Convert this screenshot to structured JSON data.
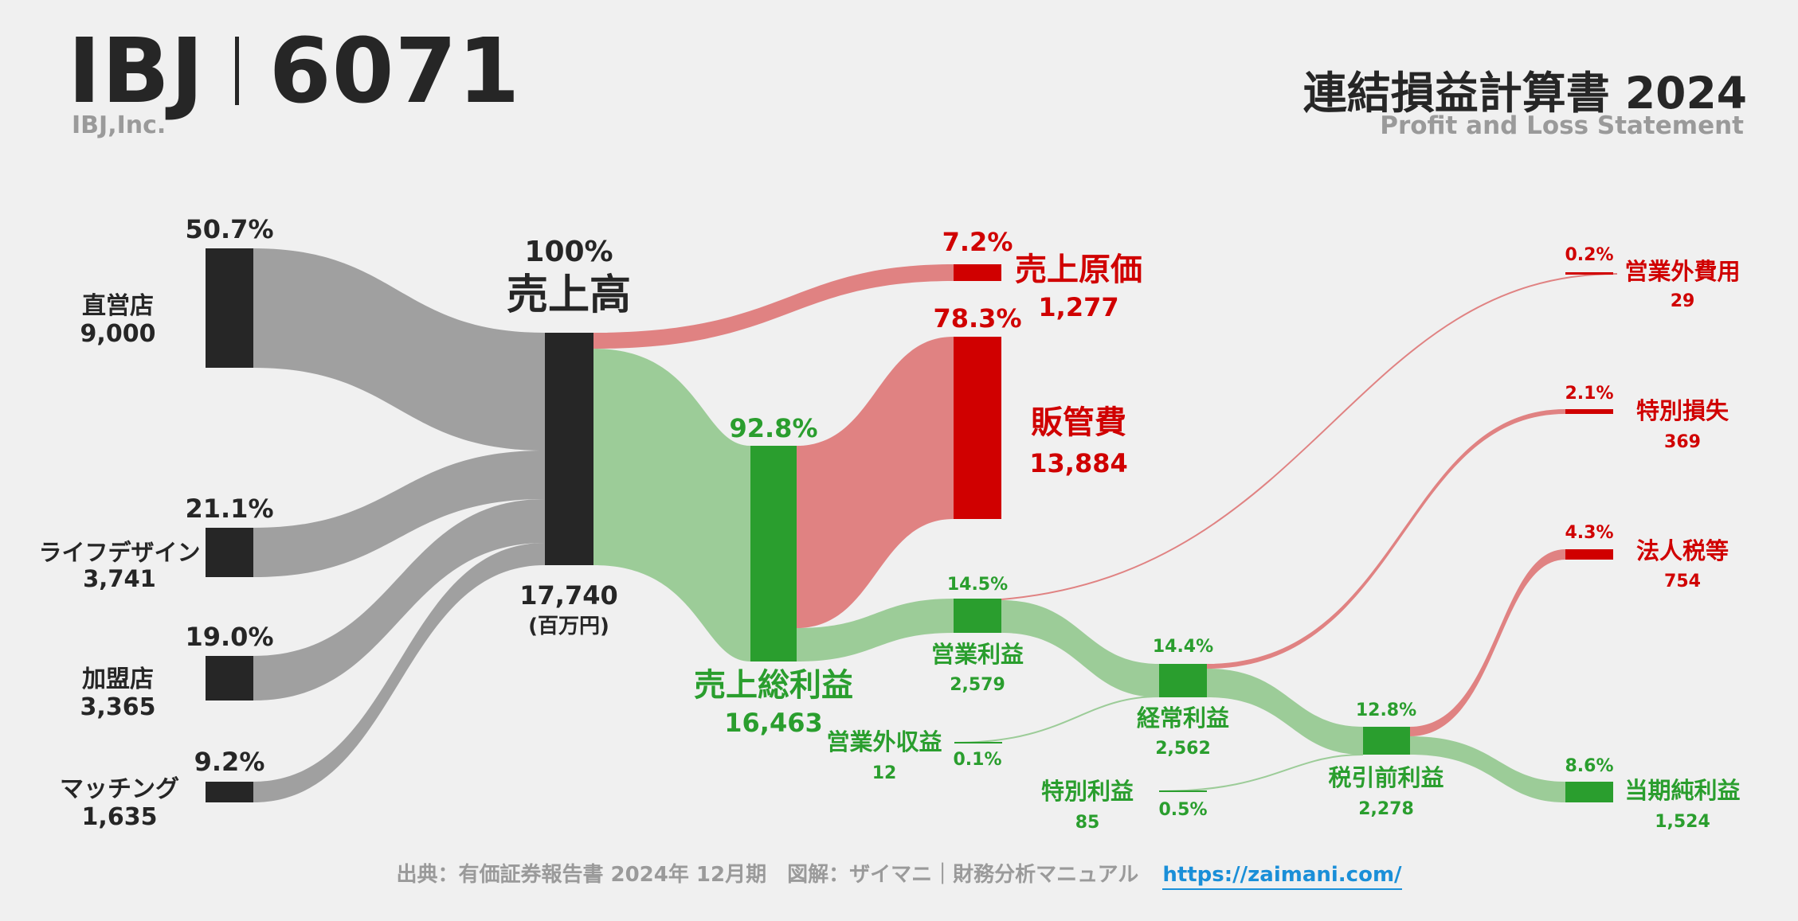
{
  "header": {
    "company_name": "IBJ",
    "ticker_code": "6071",
    "company_sub": "IBJ,Inc.",
    "title": "連結損益計算書 2024",
    "subtitle": "Profit and Loss Statement"
  },
  "colors": {
    "background": "#f0f0f0",
    "revenue_node": "#262626",
    "revenue_flow": "#a0a0a0",
    "profit_node": "#2a9e2e",
    "profit_flow": "#9ccc98",
    "cost_node": "#d00000",
    "cost_flow": "#e08282"
  },
  "segments": [
    {
      "name": "直営店",
      "value": "9,000",
      "pct": "50.7%"
    },
    {
      "name": "ライフデザイン",
      "value": "3,741",
      "pct": "21.1%"
    },
    {
      "name": "加盟店",
      "value": "3,365",
      "pct": "19.0%"
    },
    {
      "name": "マッチング",
      "value": "1,635",
      "pct": "9.2%"
    }
  ],
  "revenue": {
    "pct": "100%",
    "name": "売上高",
    "value": "17,740",
    "unit": "(百万円)"
  },
  "cogs": {
    "pct": "7.2%",
    "name": "売上原価",
    "value": "1,277"
  },
  "sga": {
    "pct": "78.3%",
    "name": "販管費",
    "value": "13,884"
  },
  "gross_profit": {
    "pct": "92.8%",
    "name": "売上総利益",
    "value": "16,463"
  },
  "operating_income": {
    "pct": "14.5%",
    "name": "営業利益",
    "value": "2,579"
  },
  "non_op_income": {
    "pct": "0.1%",
    "name": "営業外収益",
    "value": "12"
  },
  "non_op_expense": {
    "pct": "0.2%",
    "name": "営業外費用",
    "value": "29"
  },
  "ordinary_income": {
    "pct": "14.4%",
    "name": "経常利益",
    "value": "2,562"
  },
  "special_income": {
    "pct": "0.5%",
    "name": "特別利益",
    "value": "85"
  },
  "special_loss": {
    "pct": "2.1%",
    "name": "特別損失",
    "value": "369"
  },
  "pretax_income": {
    "pct": "12.8%",
    "name": "税引前利益",
    "value": "2,278"
  },
  "income_tax": {
    "pct": "4.3%",
    "name": "法人税等",
    "value": "754"
  },
  "net_income": {
    "pct": "8.6%",
    "name": "当期純利益",
    "value": "1,524"
  },
  "footer": {
    "source": "出典：有価証券報告書 2024年 12月期　図解：ザイマニ｜財務分析マニュアル",
    "link_text": "https://zaimani.com/"
  }
}
